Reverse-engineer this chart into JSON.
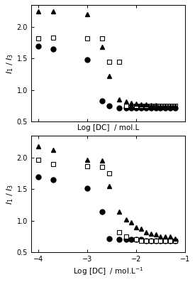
{
  "top_panel": {
    "circle": {
      "x": [
        -4.0,
        -3.7,
        -3.0,
        -2.7,
        -2.55,
        -2.35,
        -2.2,
        -2.1,
        -2.0,
        -1.9,
        -1.8,
        -1.7,
        -1.6,
        -1.5,
        -1.4,
        -1.3,
        -1.2
      ],
      "y": [
        1.7,
        1.65,
        1.48,
        0.83,
        0.75,
        0.72,
        0.72,
        0.72,
        0.72,
        0.72,
        0.72,
        0.72,
        0.72,
        0.72,
        0.72,
        0.72,
        0.72
      ]
    },
    "square": {
      "x": [
        -4.0,
        -3.7,
        -3.0,
        -2.7,
        -2.55,
        -2.35,
        -2.2,
        -2.0,
        -1.9,
        -1.8,
        -1.7,
        -1.6,
        -1.5,
        -1.4,
        -1.3,
        -1.2
      ],
      "y": [
        1.82,
        1.83,
        1.82,
        1.82,
        1.45,
        1.45,
        0.75,
        0.75,
        0.75,
        0.75,
        0.75,
        0.75,
        0.75,
        0.75,
        0.75,
        0.75
      ]
    },
    "triangle": {
      "x": [
        -4.0,
        -3.7,
        -3.0,
        -2.7,
        -2.55,
        -2.35,
        -2.2,
        -2.1,
        -2.0,
        -1.9,
        -1.8,
        -1.7,
        -1.6,
        -1.5,
        -1.4,
        -1.3,
        -1.2
      ],
      "y": [
        2.25,
        2.25,
        2.2,
        1.68,
        1.22,
        0.85,
        0.82,
        0.8,
        0.78,
        0.77,
        0.77,
        0.76,
        0.76,
        0.75,
        0.75,
        0.75,
        0.75
      ]
    }
  },
  "bottom_panel": {
    "circle": {
      "x": [
        -4.0,
        -3.7,
        -3.0,
        -2.7,
        -2.55,
        -2.35,
        -2.2,
        -2.1,
        -2.0,
        -1.9,
        -1.8,
        -1.7,
        -1.6,
        -1.5,
        -1.4,
        -1.3,
        -1.2
      ],
      "y": [
        1.7,
        1.65,
        1.52,
        1.15,
        0.72,
        0.7,
        0.7,
        0.7,
        0.7,
        0.7,
        0.68,
        0.68,
        0.68,
        0.68,
        0.68,
        0.68,
        0.68
      ]
    },
    "square": {
      "x": [
        -4.0,
        -3.7,
        -3.0,
        -2.7,
        -2.55,
        -2.35,
        -2.2,
        -2.0,
        -1.9,
        -1.8,
        -1.7,
        -1.6,
        -1.5,
        -1.4,
        -1.3,
        -1.2
      ],
      "y": [
        1.97,
        1.9,
        1.87,
        1.85,
        1.75,
        0.82,
        0.75,
        0.7,
        0.68,
        0.68,
        0.68,
        0.68,
        0.68,
        0.68,
        0.68,
        0.68
      ]
    },
    "triangle": {
      "x": [
        -4.0,
        -3.7,
        -3.0,
        -2.7,
        -2.55,
        -2.35,
        -2.2,
        -2.1,
        -2.0,
        -1.9,
        -1.8,
        -1.7,
        -1.6,
        -1.5,
        -1.4,
        -1.3,
        -1.2
      ],
      "y": [
        2.18,
        2.12,
        1.97,
        1.95,
        1.55,
        1.15,
        1.02,
        0.98,
        0.9,
        0.87,
        0.82,
        0.8,
        0.78,
        0.75,
        0.75,
        0.75,
        0.72
      ]
    }
  },
  "xlim": [
    -4.15,
    -1.0
  ],
  "ylim": [
    0.5,
    2.35
  ],
  "yticks": [
    0.5,
    1.0,
    1.5,
    2.0
  ],
  "xticks": [
    -4,
    -3,
    -2,
    -1
  ],
  "xlabel_top": "Log [DC]  / mol.L",
  "xlabel_bottom": "Log [DC]  / mol.L$^{-1}$",
  "ylabel": "$I_1$ / $I_3$",
  "marker_size": 5,
  "bg_color": "#ffffff",
  "fig_color": "#ffffff"
}
